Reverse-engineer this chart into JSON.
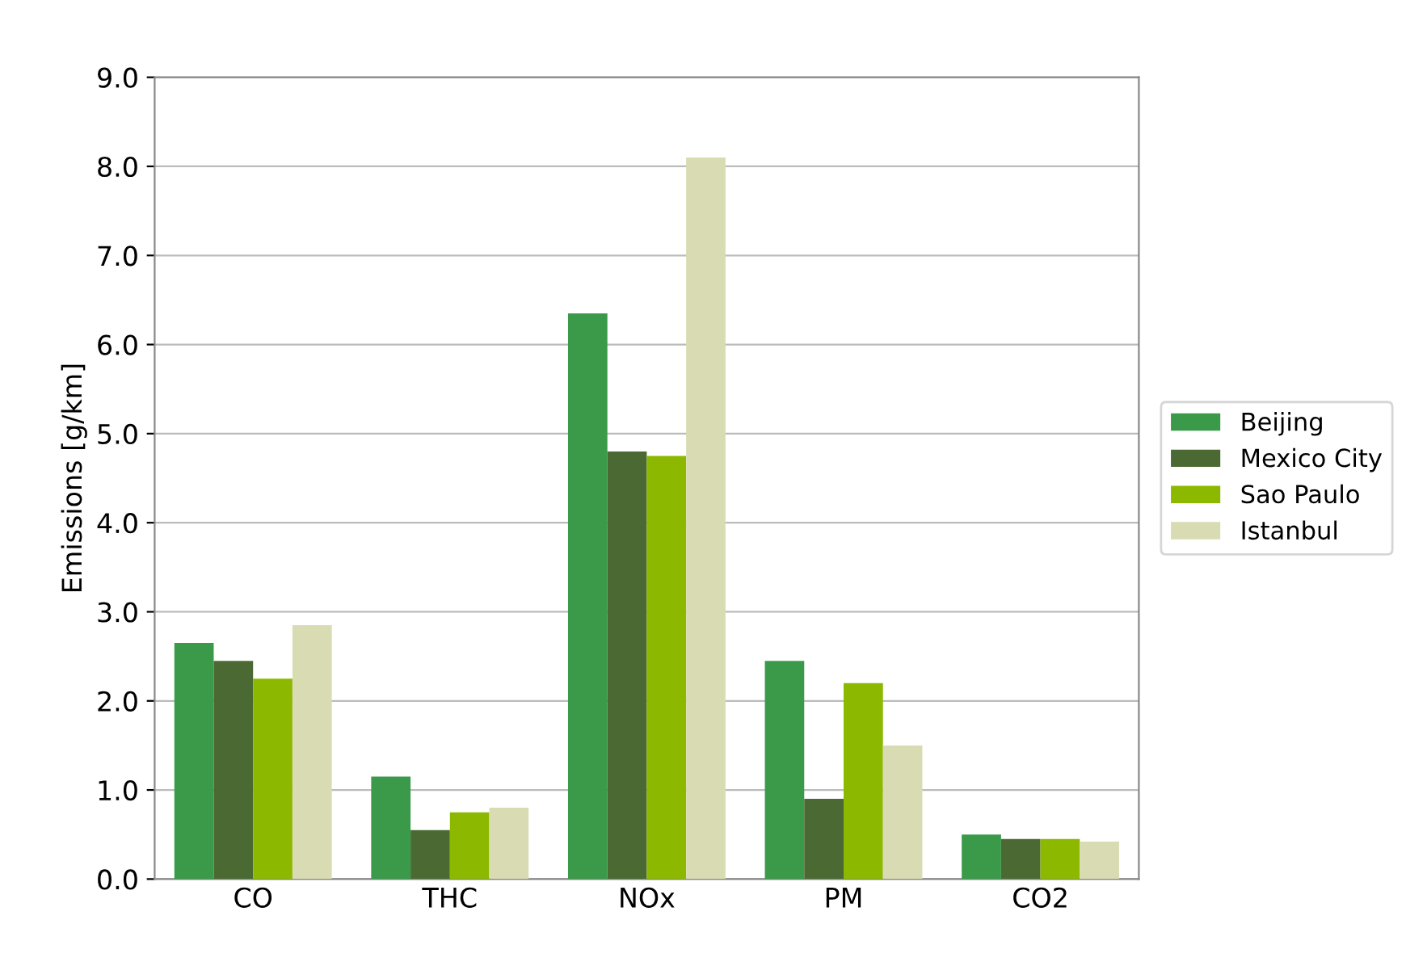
{
  "chart_data": {
    "type": "bar",
    "ylabel": "Emissions [g/km]",
    "categories": [
      "CO",
      "THC",
      "NOx",
      "PM",
      "CO2"
    ],
    "series": [
      {
        "name": "Beijing",
        "color": "#3a9a4a",
        "values": [
          2.65,
          1.15,
          6.35,
          2.45,
          0.5
        ]
      },
      {
        "name": "Mexico City",
        "color": "#4b6a33",
        "values": [
          2.45,
          0.55,
          4.8,
          0.9,
          0.45
        ]
      },
      {
        "name": "Sao Paulo",
        "color": "#8cb800",
        "values": [
          2.25,
          0.75,
          4.75,
          2.2,
          0.45
        ]
      },
      {
        "name": "Istanbul",
        "color": "#d9dcb2",
        "values": [
          2.85,
          0.8,
          8.1,
          1.5,
          0.42
        ]
      }
    ],
    "ylim": [
      0,
      9
    ],
    "yticks": [
      {
        "value": 0,
        "label": "0.0"
      },
      {
        "value": 1,
        "label": "1.0"
      },
      {
        "value": 2,
        "label": "2.0"
      },
      {
        "value": 3,
        "label": "3.0"
      },
      {
        "value": 4,
        "label": "4.0"
      },
      {
        "value": 5,
        "label": "5.0"
      },
      {
        "value": 6,
        "label": "6.0"
      },
      {
        "value": 7,
        "label": "7.0"
      },
      {
        "value": 8,
        "label": "8.0"
      },
      {
        "value": 9,
        "label": "9.0"
      }
    ],
    "grid": "y",
    "legend": "right"
  }
}
